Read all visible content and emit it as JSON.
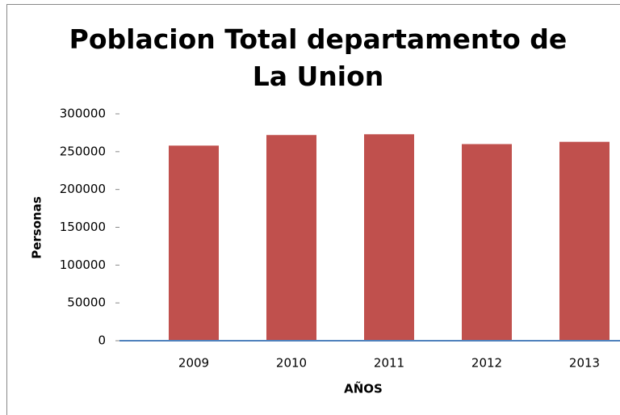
{
  "chart_data": {
    "type": "bar",
    "title": "Poblacion Total departamento de La Union",
    "x_label": "AÑOS",
    "y_label": "Personas",
    "categories": [
      "2009",
      "2010",
      "2011",
      "2012",
      "2013"
    ],
    "values": [
      258000,
      272000,
      273000,
      260000,
      263000
    ],
    "color": "#c0504d",
    "ylim": [
      0,
      300000
    ],
    "yticks": [
      0,
      50000,
      100000,
      150000,
      200000,
      250000,
      300000
    ],
    "grid": false
  }
}
